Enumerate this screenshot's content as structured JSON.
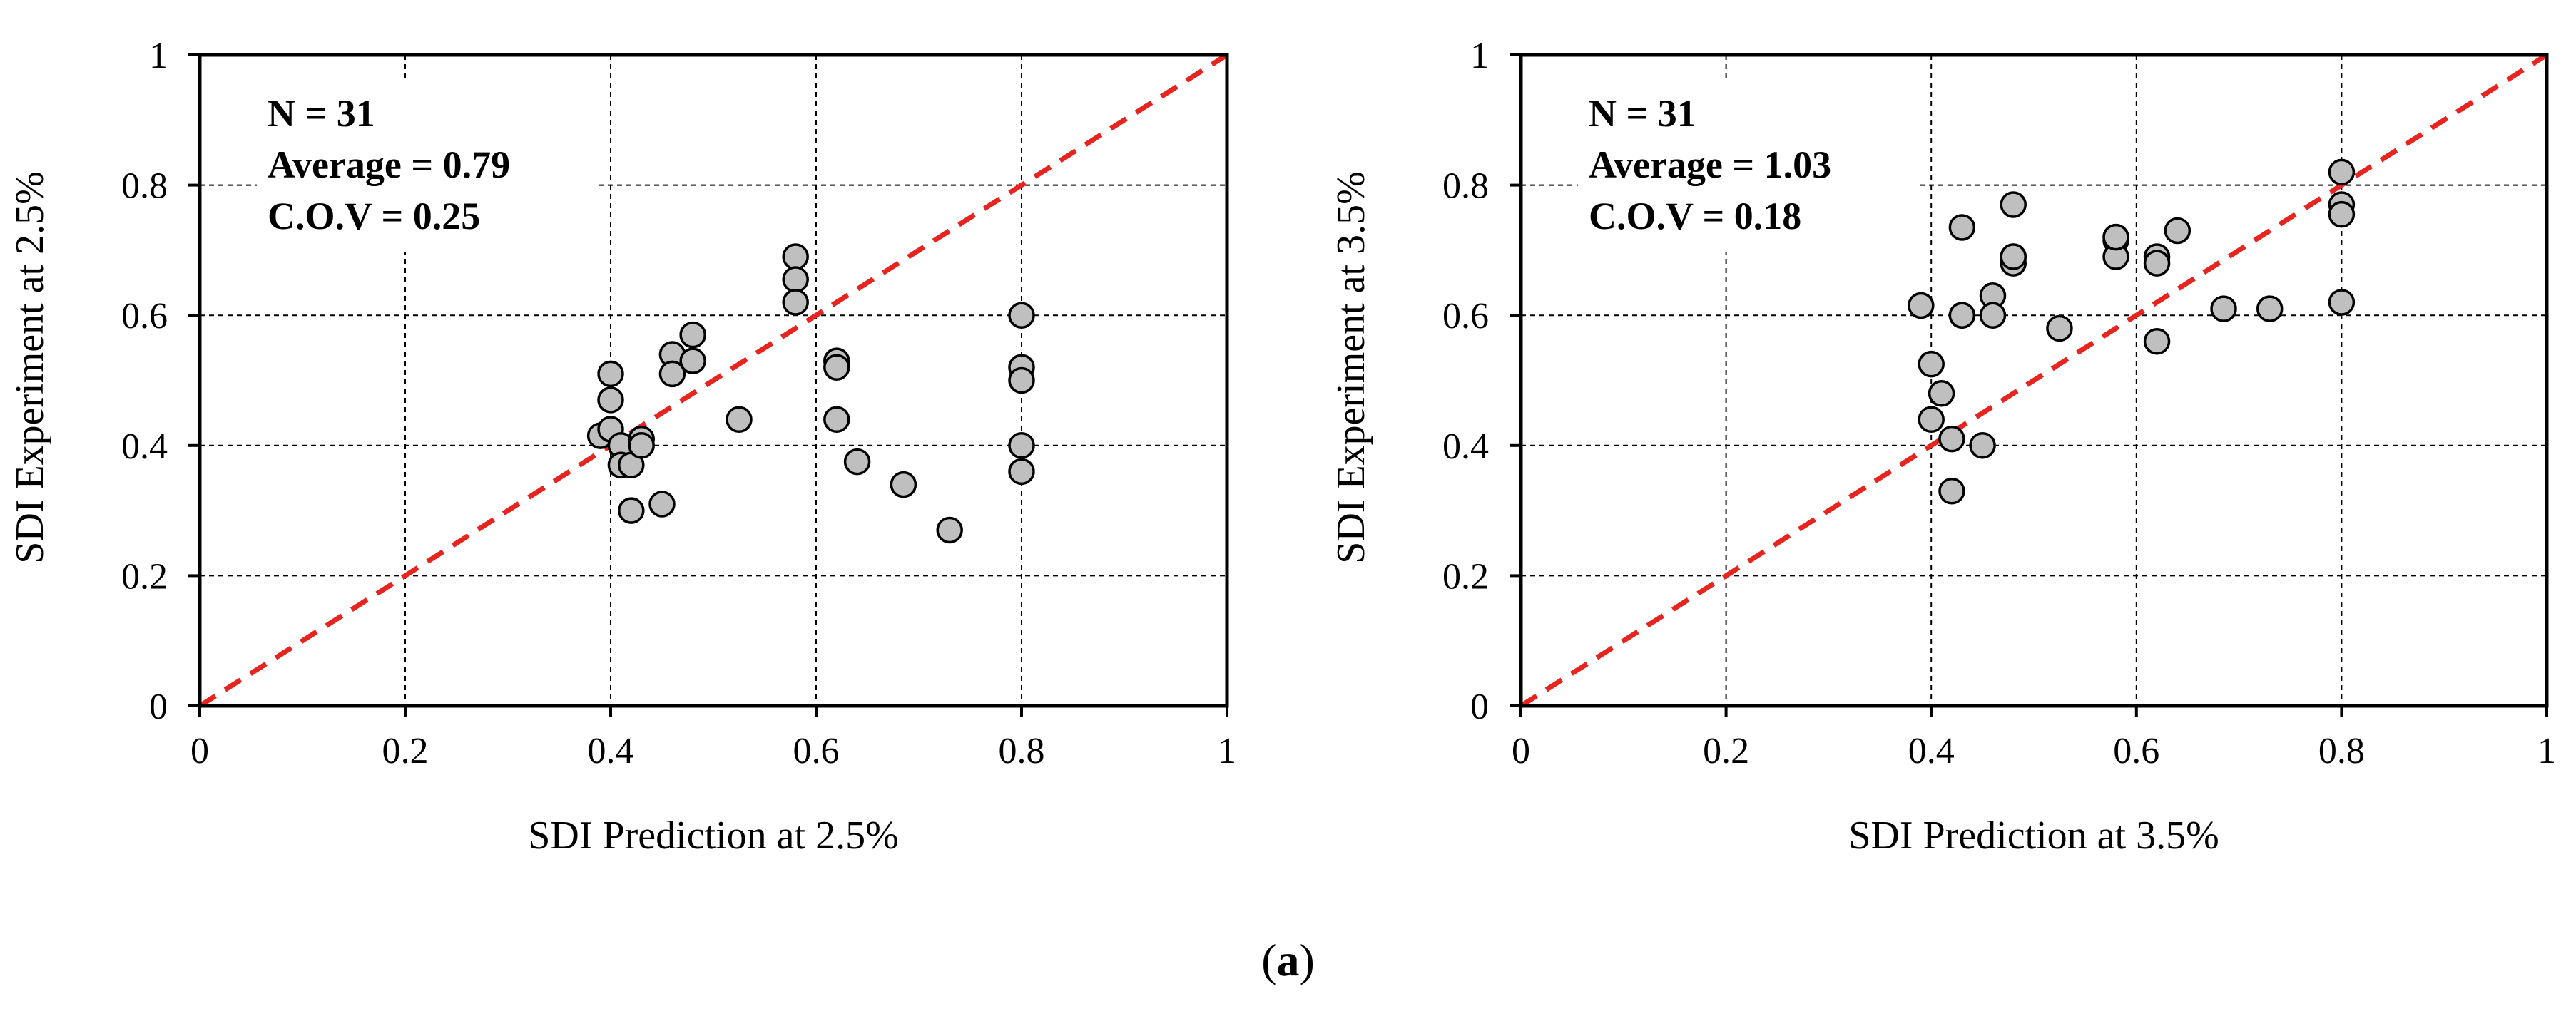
{
  "figure": {
    "caption_open": "(",
    "caption_letter": "a",
    "caption_close": ")"
  },
  "chart_data": [
    {
      "type": "scatter",
      "title": "",
      "xlabel": "SDI Prediction at 2.5%",
      "ylabel": "SDI Experiment at 2.5%",
      "xlim": [
        0,
        1
      ],
      "ylim": [
        0,
        1
      ],
      "xticks": [
        "0",
        "0.2",
        "0.4",
        "0.6",
        "0.8",
        "1"
      ],
      "yticks": [
        "0",
        "0.2",
        "0.4",
        "0.6",
        "0.8",
        "1"
      ],
      "grid": true,
      "annotations": [
        "N = 31",
        "Average = 0.79",
        "C.O.V = 0.25"
      ],
      "reference_line": {
        "from": [
          0,
          0
        ],
        "to": [
          1,
          1
        ],
        "color": "#e8241f",
        "style": "dashed"
      },
      "marker": {
        "fill": "#bfbfbf",
        "stroke": "#000000"
      },
      "series": [
        {
          "points": [
            [
              0.39,
              0.415
            ],
            [
              0.4,
              0.51
            ],
            [
              0.4,
              0.47
            ],
            [
              0.4,
              0.425
            ],
            [
              0.41,
              0.4
            ],
            [
              0.41,
              0.37
            ],
            [
              0.42,
              0.37
            ],
            [
              0.42,
              0.3
            ],
            [
              0.43,
              0.41
            ],
            [
              0.43,
              0.4
            ],
            [
              0.45,
              0.31
            ],
            [
              0.46,
              0.54
            ],
            [
              0.46,
              0.51
            ],
            [
              0.48,
              0.57
            ],
            [
              0.48,
              0.53
            ],
            [
              0.525,
              0.44
            ],
            [
              0.58,
              0.69
            ],
            [
              0.58,
              0.655
            ],
            [
              0.58,
              0.62
            ],
            [
              0.62,
              0.53
            ],
            [
              0.62,
              0.52
            ],
            [
              0.62,
              0.44
            ],
            [
              0.64,
              0.375
            ],
            [
              0.685,
              0.34
            ],
            [
              0.73,
              0.27
            ],
            [
              0.8,
              0.6
            ],
            [
              0.8,
              0.52
            ],
            [
              0.8,
              0.5
            ],
            [
              0.8,
              0.4
            ],
            [
              0.8,
              0.36
            ],
            [
              0.48,
              0.57
            ]
          ]
        }
      ]
    },
    {
      "type": "scatter",
      "title": "",
      "xlabel": "SDI Prediction at 3.5%",
      "ylabel": "SDI Experiment at 3.5%",
      "xlim": [
        0,
        1
      ],
      "ylim": [
        0,
        1
      ],
      "xticks": [
        "0",
        "0.2",
        "0.4",
        "0.6",
        "0.8",
        "1"
      ],
      "yticks": [
        "0",
        "0.2",
        "0.4",
        "0.6",
        "0.8",
        "1"
      ],
      "grid": true,
      "annotations": [
        "N = 31",
        "Average = 1.03",
        "C.O.V = 0.18"
      ],
      "reference_line": {
        "from": [
          0,
          0
        ],
        "to": [
          1,
          1
        ],
        "color": "#e8241f",
        "style": "dashed"
      },
      "marker": {
        "fill": "#bfbfbf",
        "stroke": "#000000"
      },
      "series": [
        {
          "points": [
            [
              0.39,
              0.615
            ],
            [
              0.4,
              0.525
            ],
            [
              0.4,
              0.44
            ],
            [
              0.41,
              0.48
            ],
            [
              0.42,
              0.41
            ],
            [
              0.42,
              0.33
            ],
            [
              0.43,
              0.735
            ],
            [
              0.43,
              0.6
            ],
            [
              0.45,
              0.4
            ],
            [
              0.46,
              0.63
            ],
            [
              0.46,
              0.6
            ],
            [
              0.48,
              0.77
            ],
            [
              0.48,
              0.69
            ],
            [
              0.48,
              0.68
            ],
            [
              0.525,
              0.58
            ],
            [
              0.58,
              0.72
            ],
            [
              0.58,
              0.715
            ],
            [
              0.58,
              0.69
            ],
            [
              0.62,
              0.69
            ],
            [
              0.62,
              0.68
            ],
            [
              0.62,
              0.56
            ],
            [
              0.64,
              0.73
            ],
            [
              0.685,
              0.61
            ],
            [
              0.73,
              0.61
            ],
            [
              0.8,
              0.82
            ],
            [
              0.8,
              0.77
            ],
            [
              0.8,
              0.755
            ],
            [
              0.8,
              0.62
            ],
            [
              0.58,
              0.72
            ],
            [
              0.48,
              0.69
            ],
            [
              0.43,
              0.6
            ]
          ]
        }
      ]
    }
  ]
}
